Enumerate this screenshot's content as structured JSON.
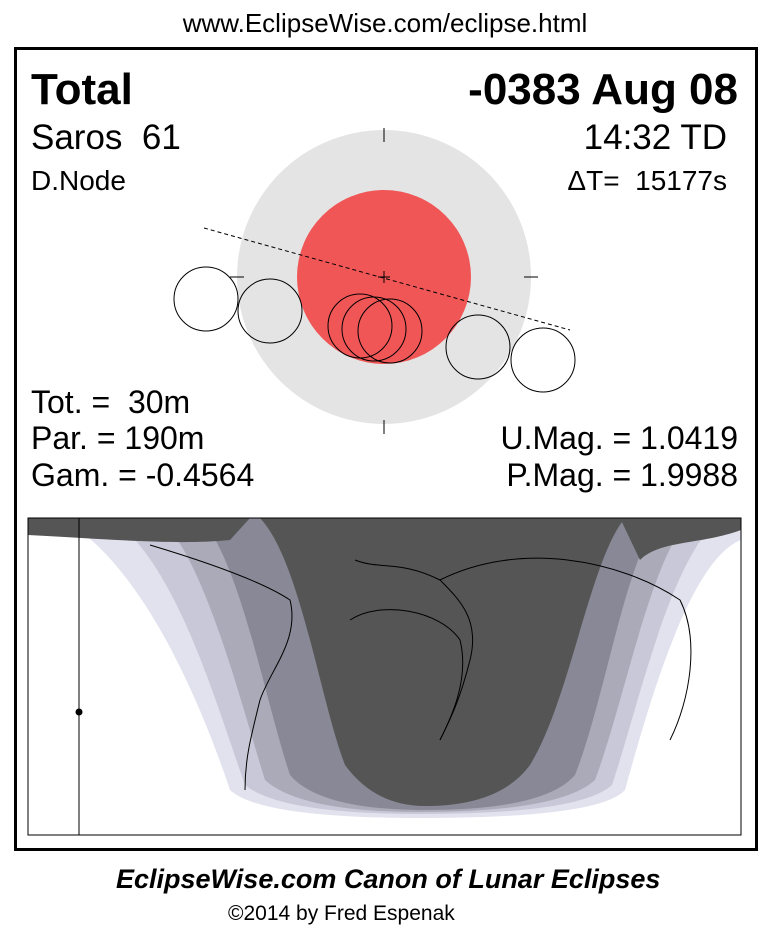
{
  "header": {
    "url": "www.EclipseWise.com/eclipse.html"
  },
  "panel": {
    "type": "Total",
    "date": "-0383 Aug 08",
    "saros": "Saros  61",
    "time": "14:32 TD",
    "node": "D.Node",
    "delta_t": "ΔT=  15177s",
    "tot": "Tot. =  30m",
    "par": "Par. = 190m",
    "gam": "Gam. = -0.4564",
    "umag": "U.Mag. = 1.0419",
    "pmag": "P.Mag. = 1.9988"
  },
  "footer": {
    "title": "EclipseWise.com Canon of Lunar Eclipses",
    "credit": "©2014 by Fred Espenak"
  }
}
